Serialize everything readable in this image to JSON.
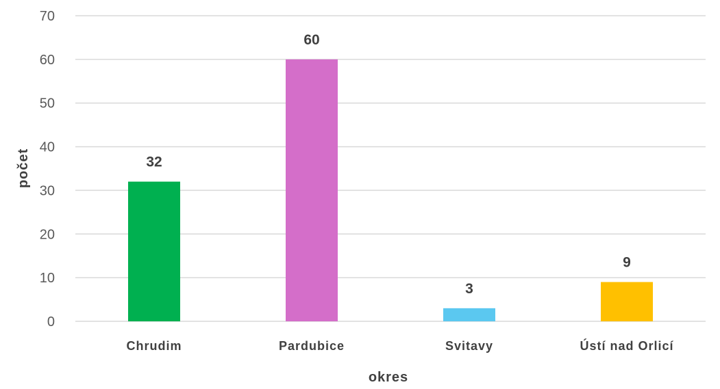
{
  "chart_data": {
    "type": "bar",
    "categories": [
      "Chrudim",
      "Pardubice",
      "Svitavy",
      "Ústí nad Orlicí"
    ],
    "values": [
      32,
      60,
      3,
      9
    ],
    "colors": [
      "#00b050",
      "#d46ec9",
      "#5bc8f0",
      "#ffc000"
    ],
    "xlabel": "okres",
    "ylabel": "počet",
    "ylim": [
      0,
      70
    ],
    "yticks": [
      0,
      10,
      20,
      30,
      40,
      50,
      60,
      70
    ],
    "grid": true,
    "data_labels": true
  }
}
